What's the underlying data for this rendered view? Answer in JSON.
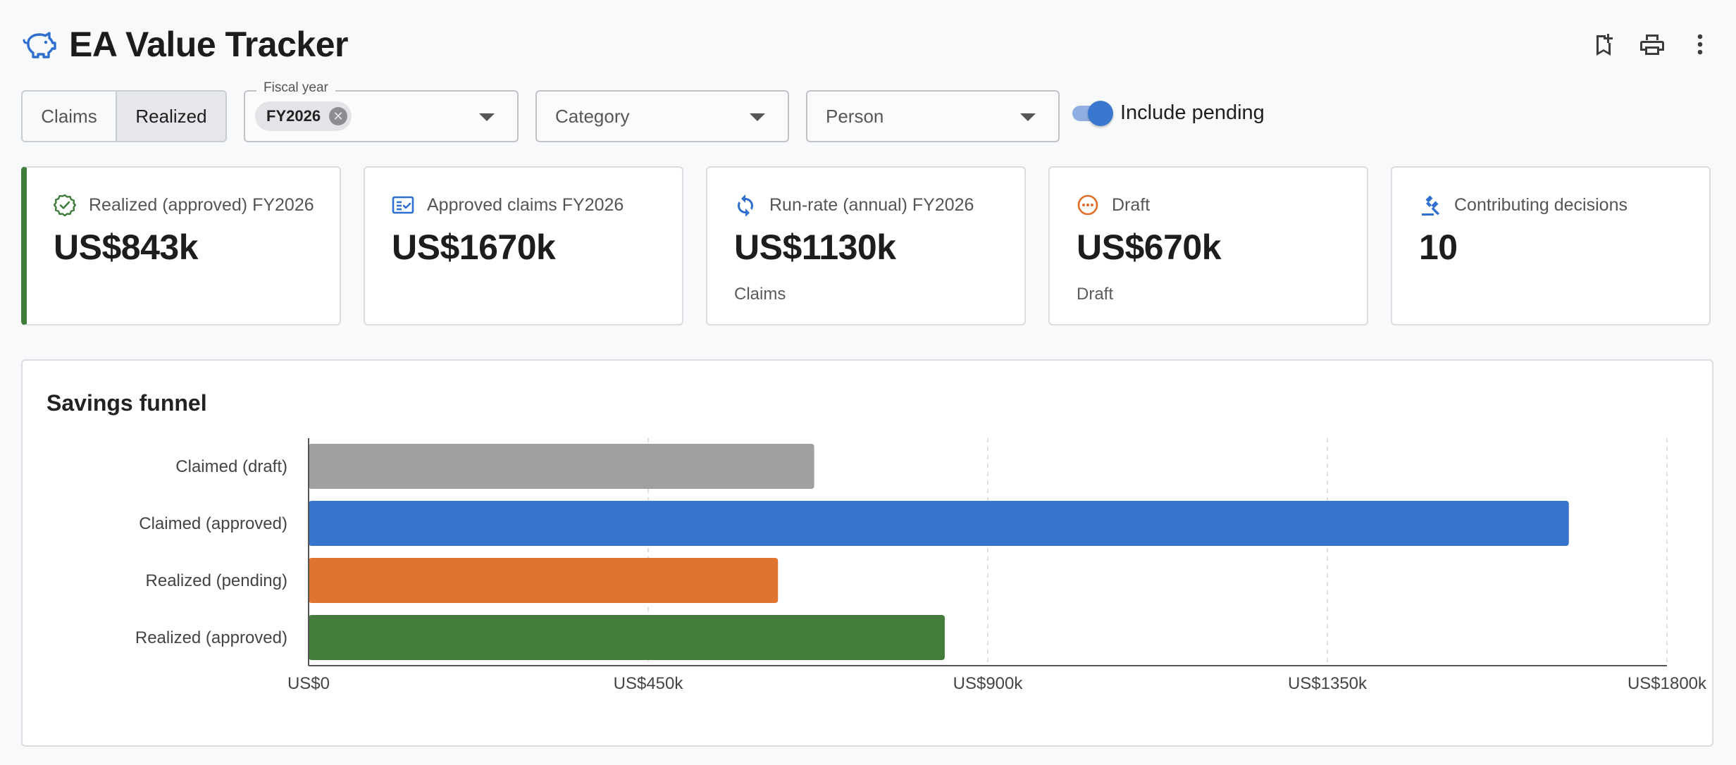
{
  "app": {
    "title": "EA Value Tracker",
    "icon": "piggy-bank-icon",
    "actions": [
      {
        "name": "bookmark-add-icon"
      },
      {
        "name": "print-icon"
      },
      {
        "name": "more-vert-icon"
      }
    ]
  },
  "filters": {
    "mode": {
      "options": [
        "Claims",
        "Realized"
      ],
      "selected": "Realized"
    },
    "fiscal_year": {
      "label": "Fiscal year",
      "value": "FY2026"
    },
    "category": {
      "placeholder": "Category"
    },
    "person": {
      "placeholder": "Person"
    },
    "include_pending": {
      "label": "Include pending",
      "on": true
    }
  },
  "kpis": [
    {
      "icon": "check-badge-icon",
      "color": "#3f7d3d",
      "label": "Realized (approved) FY2026",
      "value": "US$843k",
      "sub": ""
    },
    {
      "icon": "fact-check-icon",
      "color": "#2f6fcf",
      "label": "Approved claims FY2026",
      "value": "US$1670k",
      "sub": ""
    },
    {
      "icon": "autorenew-icon",
      "color": "#2f6fcf",
      "label": "Run-rate (annual) FY2026",
      "value": "US$1130k",
      "sub": "Claims"
    },
    {
      "icon": "pending-icon",
      "color": "#e06f2a",
      "label": "Draft",
      "value": "US$670k",
      "sub": "Draft"
    },
    {
      "icon": "gavel-icon",
      "color": "#2f6fcf",
      "label": "Contributing decisions",
      "value": "10",
      "sub": ""
    }
  ],
  "chart": {
    "title": "Savings funnel"
  },
  "chart_data": {
    "type": "bar",
    "orientation": "horizontal",
    "categories": [
      "Claimed (draft)",
      "Claimed (approved)",
      "Realized (pending)",
      "Realized (approved)"
    ],
    "values": [
      670000,
      1670000,
      622000,
      843000
    ],
    "colors": [
      "#a0a0a0",
      "#3874cb",
      "#e0732f",
      "#437c3b"
    ],
    "xlim": [
      0,
      1800000
    ],
    "xticks": [
      0,
      450000,
      900000,
      1350000,
      1800000
    ],
    "xtick_labels": [
      "US$0",
      "US$450k",
      "US$900k",
      "US$1350k",
      "US$1800k"
    ],
    "grid": "vertical dashed",
    "legend": "none"
  }
}
